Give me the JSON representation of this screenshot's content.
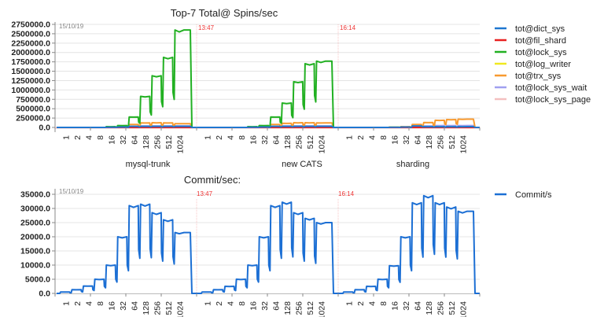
{
  "chart_data": [
    {
      "type": "line",
      "title": "Top-7 Total@ Spins/sec",
      "xlabel": "",
      "ylabel": "",
      "ylim": [
        0,
        2750000
      ],
      "yticks": [
        "0.0",
        "250000.0",
        "500000.0",
        "750000.0",
        "1000000.0",
        "1250000.0",
        "1500000.0",
        "1750000.0",
        "2000000.0",
        "2250000.0",
        "2500000.0",
        "2750000.0"
      ],
      "grid": true,
      "legend_position": "right",
      "date_label": "15/10/19",
      "time_markers": [
        "13:47",
        "16:14"
      ],
      "sections": [
        "mysql-trunk",
        "new CATS",
        "sharding"
      ],
      "categories": [
        "1",
        "2",
        "4",
        "8",
        "16",
        "32",
        "64",
        "128",
        "256",
        "512",
        "1024"
      ],
      "series": [
        {
          "name": "tot@dict_sys",
          "color": "#1f77d0",
          "values": {
            "mysql-trunk": [
              0,
              0,
              0,
              0,
              5000,
              10000,
              30000,
              30000,
              30000,
              30000,
              30000
            ],
            "new CATS": [
              0,
              0,
              0,
              0,
              5000,
              10000,
              30000,
              30000,
              30000,
              30000,
              30000
            ],
            "sharding": [
              0,
              0,
              0,
              0,
              5000,
              10000,
              40000,
              20000,
              20000,
              20000,
              20000
            ]
          }
        },
        {
          "name": "tot@fil_shard",
          "color": "#e82020",
          "values": {
            "mysql-trunk": [
              0,
              0,
              0,
              0,
              0,
              0,
              0,
              0,
              0,
              0,
              0
            ],
            "new CATS": [
              0,
              0,
              0,
              0,
              0,
              0,
              0,
              0,
              0,
              0,
              0
            ],
            "sharding": [
              0,
              0,
              0,
              0,
              0,
              0,
              0,
              0,
              0,
              0,
              0
            ]
          }
        },
        {
          "name": "tot@lock_sys",
          "color": "#22b022",
          "values": {
            "mysql-trunk": [
              0,
              0,
              0,
              0,
              20000,
              50000,
              280000,
              830000,
              1380000,
              1870000,
              2600000
            ],
            "new CATS": [
              0,
              0,
              0,
              0,
              20000,
              50000,
              280000,
              650000,
              1220000,
              1700000,
              1770000
            ],
            "sharding": [
              0,
              0,
              0,
              0,
              0,
              0,
              0,
              0,
              0,
              0,
              0
            ]
          }
        },
        {
          "name": "tot@log_writer",
          "color": "#f0e820",
          "values": {
            "mysql-trunk": [
              0,
              0,
              0,
              0,
              5000,
              5000,
              5000,
              5000,
              5000,
              5000,
              5000
            ],
            "new CATS": [
              0,
              0,
              0,
              0,
              5000,
              5000,
              5000,
              5000,
              5000,
              5000,
              5000
            ],
            "sharding": [
              0,
              0,
              0,
              0,
              10000,
              10000,
              10000,
              10000,
              15000,
              15000,
              15000
            ]
          }
        },
        {
          "name": "tot@trx_sys",
          "color": "#f89a30",
          "values": {
            "mysql-trunk": [
              0,
              0,
              0,
              0,
              10000,
              20000,
              80000,
              120000,
              125000,
              120000,
              100000
            ],
            "new CATS": [
              0,
              0,
              0,
              0,
              10000,
              20000,
              80000,
              110000,
              125000,
              125000,
              120000
            ],
            "sharding": [
              0,
              0,
              0,
              0,
              10000,
              20000,
              80000,
              130000,
              190000,
              210000,
              220000
            ]
          }
        },
        {
          "name": "tot@lock_sys_wait",
          "color": "#a0a0f0",
          "values": {
            "mysql-trunk": [
              0,
              0,
              0,
              0,
              5000,
              10000,
              30000,
              40000,
              40000,
              40000,
              40000
            ],
            "new CATS": [
              0,
              0,
              0,
              0,
              5000,
              10000,
              30000,
              40000,
              40000,
              40000,
              40000
            ],
            "sharding": [
              0,
              0,
              0,
              0,
              5000,
              10000,
              30000,
              40000,
              50000,
              50000,
              50000
            ]
          }
        },
        {
          "name": "tot@lock_sys_page",
          "color": "#f4c0c0",
          "values": {
            "mysql-trunk": [
              0,
              0,
              0,
              0,
              0,
              0,
              0,
              0,
              0,
              0,
              0
            ],
            "new CATS": [
              0,
              0,
              0,
              0,
              0,
              0,
              0,
              0,
              0,
              0,
              0
            ],
            "sharding": [
              0,
              0,
              0,
              0,
              0,
              0,
              0,
              0,
              0,
              0,
              0
            ]
          }
        }
      ]
    },
    {
      "type": "line",
      "title": "Commit/sec:",
      "xlabel": "",
      "ylabel": "",
      "ylim": [
        0,
        35000
      ],
      "yticks": [
        "0.0",
        "5000.0",
        "10000.0",
        "15000.0",
        "20000.0",
        "25000.0",
        "30000.0",
        "35000.0"
      ],
      "grid": true,
      "legend_position": "right",
      "date_label": "15/10/19",
      "time_markers": [
        "13:47",
        "16:14"
      ],
      "categories": [
        "1",
        "2",
        "4",
        "8",
        "16",
        "32",
        "64",
        "128",
        "256",
        "512",
        "1024"
      ],
      "series": [
        {
          "name": "Commit/s",
          "color": "#1c6fd4",
          "values": {
            "mysql-trunk": [
              500,
              1300,
              2600,
              5000,
              10000,
              20000,
              31000,
              31500,
              28500,
              26000,
              21500
            ],
            "new CATS": [
              500,
              1300,
              2500,
              5000,
              10000,
              20000,
              31000,
              32200,
              28500,
              26500,
              25000
            ],
            "sharding": [
              500,
              1300,
              2500,
              5000,
              9800,
              20000,
              32000,
              34500,
              32000,
              30500,
              29000
            ]
          }
        }
      ]
    }
  ],
  "labels": {
    "top_title": "Top-7 Total@ Spins/sec",
    "bottom_title": "Commit/sec:",
    "date": "15/10/19",
    "marker1": "13:47",
    "marker2": "16:14",
    "section1": "mysql-trunk",
    "section2": "new CATS",
    "section3": "sharding"
  },
  "legend_top": [
    {
      "name": "tot@dict_sys",
      "color": "#1f77d0"
    },
    {
      "name": "tot@fil_shard",
      "color": "#e82020"
    },
    {
      "name": "tot@lock_sys",
      "color": "#22b022"
    },
    {
      "name": "tot@log_writer",
      "color": "#f0e820"
    },
    {
      "name": "tot@trx_sys",
      "color": "#f89a30"
    },
    {
      "name": "tot@lock_sys_wait",
      "color": "#a0a0f0"
    },
    {
      "name": "tot@lock_sys_page",
      "color": "#f4c0c0"
    }
  ],
  "legend_bottom": [
    {
      "name": "Commit/s",
      "color": "#1c6fd4"
    }
  ]
}
